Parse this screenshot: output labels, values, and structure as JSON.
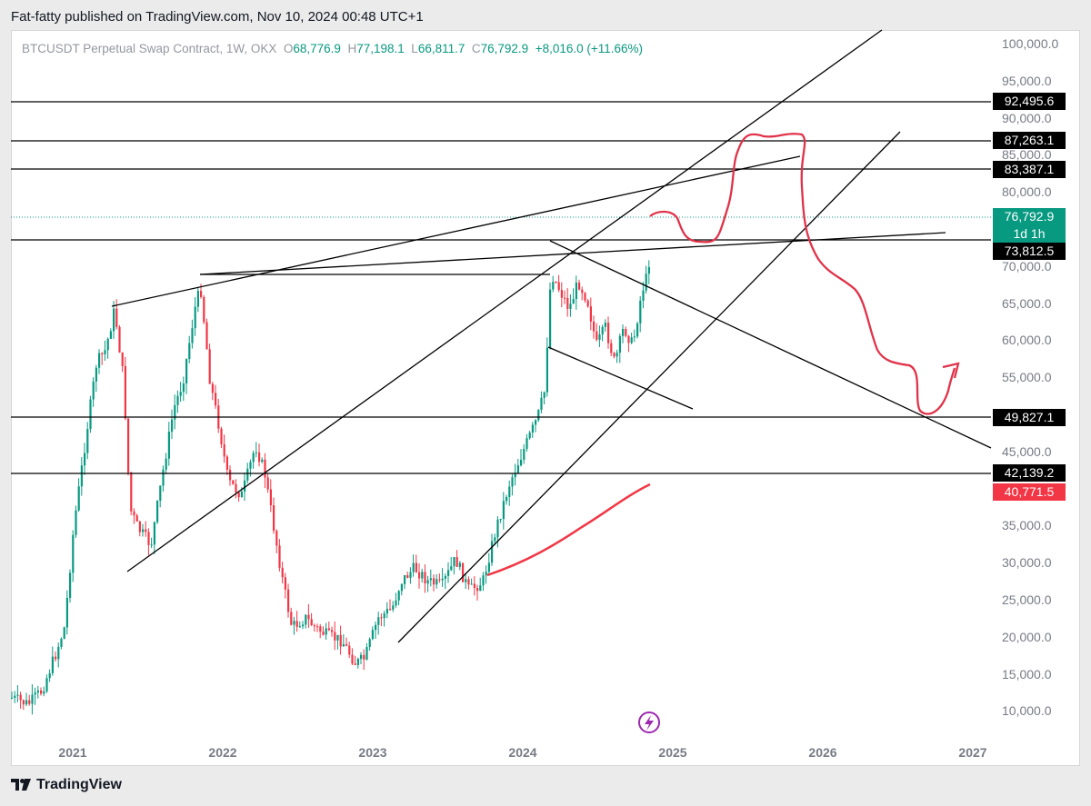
{
  "header": {
    "publisher_line": "Fat-fatty published on TradingView.com, Nov 10, 2024 00:48 UTC+1"
  },
  "legend": {
    "symbol": "BTCUSDT Perpetual Swap Contract, 1W, OKX",
    "open_label": "O",
    "open": "68,776.9",
    "high_label": "H",
    "high": "77,198.1",
    "low_label": "L",
    "low": "66,811.7",
    "close_label": "C",
    "close": "76,792.9",
    "change": "+8,016.0 (+11.66%)"
  },
  "price_axis": {
    "ticks": [
      "100,000.0",
      "95,000.0",
      "90,000.0",
      "85,000.0",
      "80,000.0",
      "75,000.0",
      "70,000.0",
      "65,000.0",
      "60,000.0",
      "55,000.0",
      "50,000.0",
      "45,000.0",
      "40,000.0",
      "35,000.0",
      "30,000.0",
      "25,000.0",
      "20,000.0",
      "15,000.0",
      "10,000.0"
    ],
    "badges": {
      "level_92495": "92,495.6",
      "level_87263": "87,263.1",
      "level_83387": "83,387.1",
      "last_price": "76,792.9",
      "countdown": "1d 1h",
      "level_73812": "73,812.5",
      "level_49827": "49,827.1",
      "level_42139": "42,139.2",
      "ma_value": "40,771.5"
    }
  },
  "time_axis": {
    "ticks": [
      "2021",
      "2022",
      "2023",
      "2024",
      "2025",
      "2026",
      "2027"
    ]
  },
  "footer": {
    "brand": "TradingView"
  },
  "colors": {
    "up": "#089981",
    "down": "#f23645",
    "drawing_red": "#e0334a",
    "event_icon": "#9c27b0"
  },
  "icons": {
    "event": "lightning-bolt-icon",
    "brand": "tradingview-logo-icon"
  }
}
